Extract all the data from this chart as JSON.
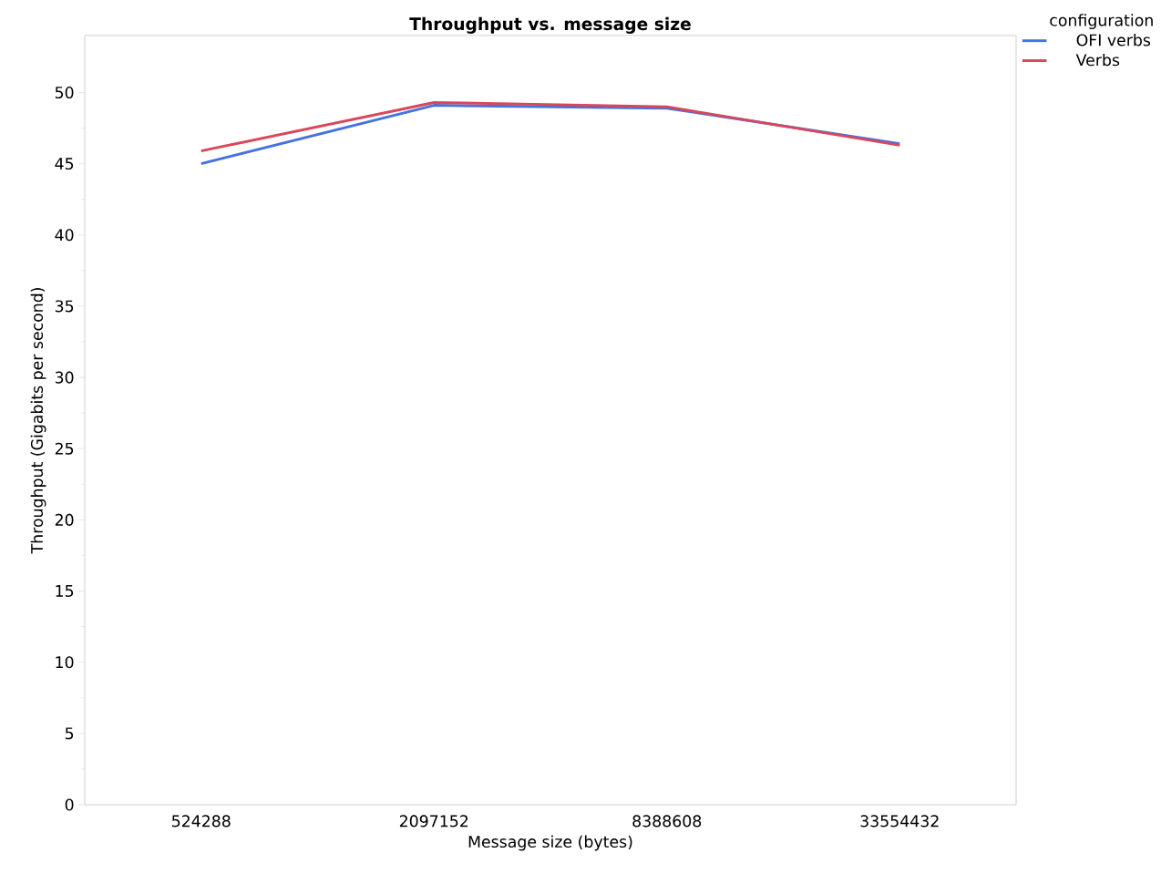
{
  "chart_data": {
    "type": "line",
    "title": "Throughput vs. message size",
    "xlabel": "Message size (bytes)",
    "ylabel": "Throughput (Gigabits per second)",
    "legend_title": "configuration",
    "categories": [
      "524288",
      "2097152",
      "8388608",
      "33554432"
    ],
    "series": [
      {
        "name": "OFI verbs",
        "color": "#4472e0",
        "values": [
          45.0,
          49.1,
          48.9,
          46.4
        ]
      },
      {
        "name": "Verbs",
        "color": "#d9475a",
        "values": [
          45.9,
          49.3,
          49.0,
          46.3
        ]
      }
    ],
    "ylim": [
      0,
      54
    ],
    "yticks": [
      0,
      5,
      10,
      15,
      20,
      25,
      30,
      35,
      40,
      45,
      50
    ],
    "grid": false,
    "legend": "top right",
    "line_style": "solid"
  }
}
